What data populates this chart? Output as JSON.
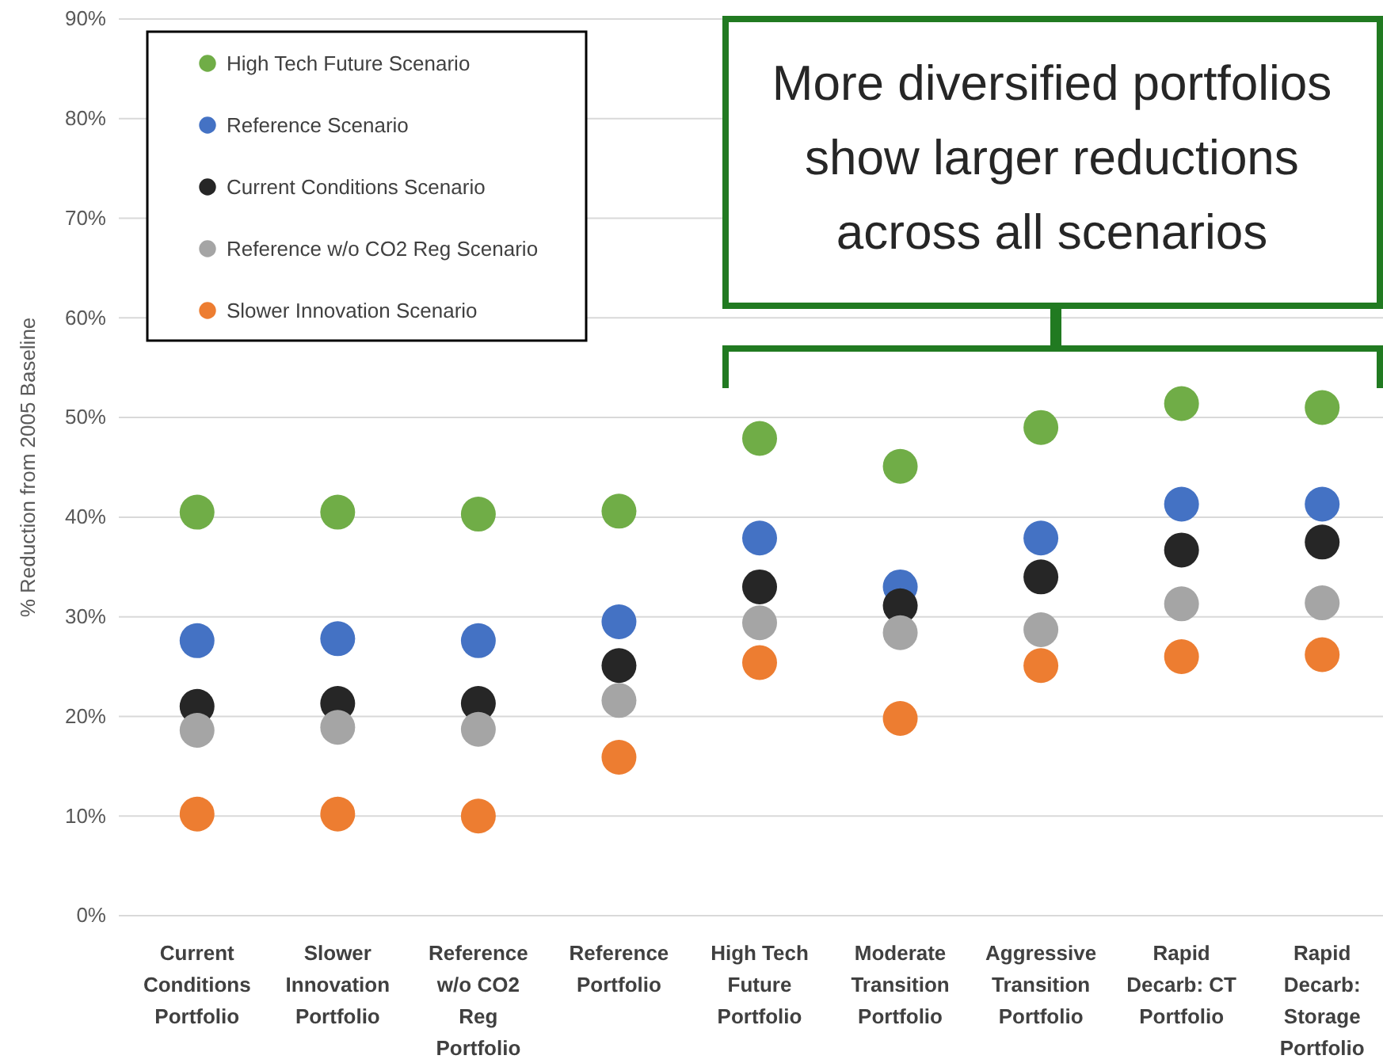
{
  "chart_data": {
    "type": "scatter",
    "ylabel": "% Reduction from 2005 Baseline",
    "categories": [
      "Current Conditions Portfolio",
      "Slower Innovation Portfolio",
      "Reference w/o CO2 Reg Portfolio",
      "Reference Portfolio",
      "High Tech Future Portfolio",
      "Moderate Transition Portfolio",
      "Aggressive Transition Portfolio",
      "Rapid Decarb: CT Portfolio",
      "Rapid Decarb: Storage Portfolio"
    ],
    "series": [
      {
        "name": "High Tech Future Scenario",
        "color": "#70ad47",
        "values": [
          40.5,
          40.5,
          40.3,
          40.6,
          47.9,
          45.1,
          49.0,
          51.4,
          51.0
        ]
      },
      {
        "name": "Reference Scenario",
        "color": "#4472c4",
        "values": [
          27.6,
          27.8,
          27.6,
          29.5,
          37.9,
          33.0,
          37.9,
          41.3,
          41.3
        ]
      },
      {
        "name": "Current Conditions Scenario",
        "color": "#262626",
        "values": [
          21.0,
          21.3,
          21.3,
          25.1,
          33.0,
          31.1,
          34.0,
          36.7,
          37.5
        ]
      },
      {
        "name": "Reference w/o CO2 Reg Scenario",
        "color": "#a5a5a5",
        "values": [
          18.6,
          18.9,
          18.7,
          21.6,
          29.4,
          28.4,
          28.7,
          31.3,
          31.4
        ]
      },
      {
        "name": "Slower Innovation Scenario",
        "color": "#ed7d31",
        "values": [
          10.2,
          10.2,
          10.0,
          15.9,
          25.4,
          19.8,
          25.1,
          26.0,
          26.2
        ]
      }
    ],
    "ylim": [
      0,
      90
    ],
    "yticks": [
      {
        "value": 0,
        "label": "0%"
      },
      {
        "value": 10,
        "label": "10%"
      },
      {
        "value": 20,
        "label": "20%"
      },
      {
        "value": 30,
        "label": "30%"
      },
      {
        "value": 40,
        "label": "40%"
      },
      {
        "value": 50,
        "label": "50%"
      },
      {
        "value": 60,
        "label": "60%"
      },
      {
        "value": 70,
        "label": "70%"
      },
      {
        "value": 80,
        "label": "80%"
      },
      {
        "value": 90,
        "label": "90%"
      }
    ],
    "grid": "y",
    "legend": "top left",
    "marker": "circle",
    "annotations": [
      "More diversified portfolios show larger reductions across all scenarios"
    ]
  }
}
